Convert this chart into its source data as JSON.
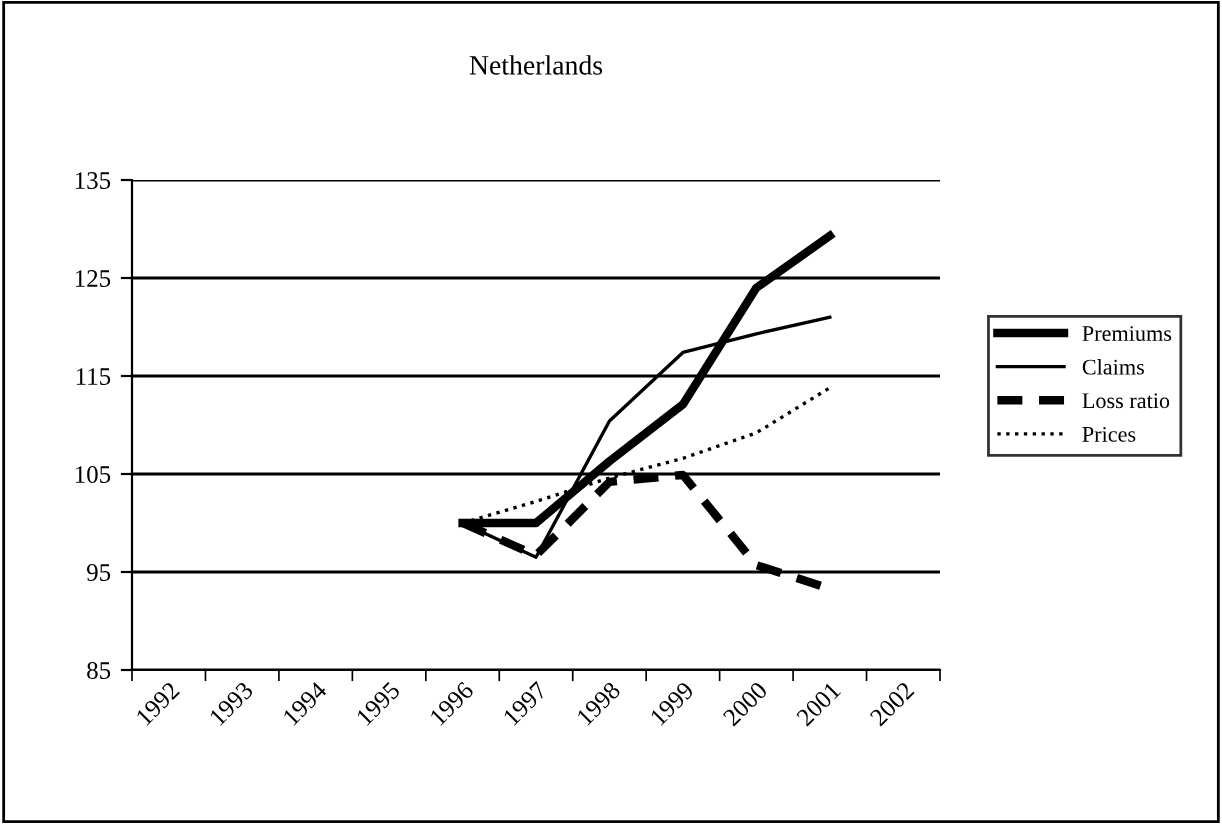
{
  "chart_data": {
    "type": "line",
    "title": "Netherlands",
    "categories": [
      "1992",
      "1993",
      "1994",
      "1995",
      "1996",
      "1997",
      "1998",
      "1999",
      "2000",
      "2001",
      "2002"
    ],
    "series": [
      {
        "name": "Premiums",
        "color": "#000000",
        "line_style": "solid",
        "values": [
          null,
          null,
          null,
          null,
          100,
          100,
          106.3,
          112.1,
          124,
          129.3,
          null
        ]
      },
      {
        "name": "Claims",
        "color": "#000000",
        "line_style": "solid",
        "values": [
          null,
          null,
          null,
          null,
          100,
          96.5,
          110.4,
          117.4,
          119.3,
          121,
          null
        ]
      },
      {
        "name": "Loss ratio",
        "color": "#000000",
        "line_style": "dashed",
        "values": [
          null,
          null,
          null,
          null,
          100,
          96.7,
          104.2,
          104.9,
          95.7,
          93.3,
          null
        ]
      },
      {
        "name": "Prices",
        "color": "#000000",
        "line_style": "dotted",
        "values": [
          null,
          null,
          null,
          null,
          100,
          102.2,
          104.6,
          106.6,
          109.2,
          113.8,
          null
        ]
      }
    ],
    "ylim": [
      85,
      135
    ],
    "yticks": [
      85,
      95,
      105,
      115,
      125,
      135
    ],
    "grid": "y",
    "legend": "right",
    "marker": "none"
  }
}
